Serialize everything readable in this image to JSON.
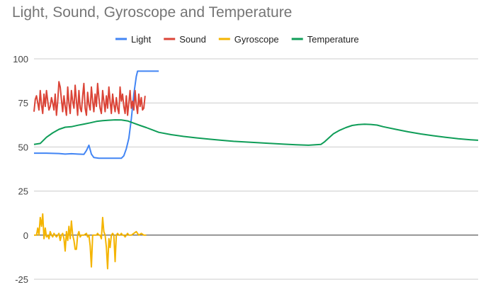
{
  "chart_data": {
    "type": "line",
    "title": "Light, Sound, Gyroscope and Temperature",
    "xlabel": "",
    "ylabel": "",
    "ylim": [
      -25,
      100
    ],
    "yticks": [
      100,
      75,
      50,
      25,
      0,
      -25
    ],
    "grid": true,
    "legend_position": "top",
    "series": [
      {
        "name": "Light",
        "color": "#4285f4",
        "points": [
          [
            0,
            46.5
          ],
          [
            10,
            46.5
          ],
          [
            20,
            46.3
          ],
          [
            25,
            46
          ],
          [
            30,
            46.2
          ],
          [
            35,
            46
          ],
          [
            40,
            45.8
          ],
          [
            42,
            48
          ],
          [
            44,
            51
          ],
          [
            46,
            46
          ],
          [
            48,
            44
          ],
          [
            52,
            43.6
          ],
          [
            60,
            43.6
          ],
          [
            70,
            43.6
          ],
          [
            72,
            45
          ],
          [
            74,
            49
          ],
          [
            76,
            55
          ],
          [
            78,
            66
          ],
          [
            80,
            80
          ],
          [
            82,
            90
          ],
          [
            83,
            93
          ],
          [
            90,
            93
          ],
          [
            100,
            93
          ]
        ]
      },
      {
        "name": "Sound",
        "color": "#db4437",
        "points": [
          [
            0,
            70
          ],
          [
            1,
            77
          ],
          [
            2,
            79
          ],
          [
            3,
            75
          ],
          [
            4,
            71
          ],
          [
            5,
            82
          ],
          [
            6,
            74
          ],
          [
            7,
            69
          ],
          [
            8,
            80
          ],
          [
            9,
            73
          ],
          [
            10,
            82
          ],
          [
            11,
            76
          ],
          [
            12,
            71
          ],
          [
            13,
            73
          ],
          [
            14,
            78
          ],
          [
            15,
            75
          ],
          [
            16,
            71
          ],
          [
            17,
            80
          ],
          [
            18,
            68
          ],
          [
            19,
            76
          ],
          [
            20,
            87
          ],
          [
            21,
            84
          ],
          [
            22,
            77
          ],
          [
            23,
            70
          ],
          [
            24,
            79
          ],
          [
            25,
            73
          ],
          [
            26,
            68
          ],
          [
            27,
            84
          ],
          [
            28,
            75
          ],
          [
            29,
            69
          ],
          [
            30,
            82
          ],
          [
            31,
            76
          ],
          [
            32,
            72
          ],
          [
            33,
            85
          ],
          [
            34,
            76
          ],
          [
            35,
            68
          ],
          [
            36,
            82
          ],
          [
            37,
            72
          ],
          [
            38,
            70
          ],
          [
            39,
            79
          ],
          [
            40,
            86
          ],
          [
            41,
            72
          ],
          [
            42,
            68
          ],
          [
            43,
            81
          ],
          [
            44,
            74
          ],
          [
            45,
            71
          ],
          [
            46,
            84
          ],
          [
            47,
            76
          ],
          [
            48,
            70
          ],
          [
            49,
            80
          ],
          [
            50,
            73
          ],
          [
            51,
            86
          ],
          [
            52,
            78
          ],
          [
            53,
            72
          ],
          [
            54,
            69
          ],
          [
            55,
            82
          ],
          [
            56,
            76
          ],
          [
            57,
            70
          ],
          [
            58,
            79
          ],
          [
            59,
            72
          ],
          [
            60,
            84
          ],
          [
            61,
            76
          ],
          [
            62,
            69
          ],
          [
            63,
            80
          ],
          [
            64,
            74
          ],
          [
            65,
            70
          ],
          [
            66,
            78
          ],
          [
            67,
            72
          ],
          [
            68,
            69
          ],
          [
            69,
            84
          ],
          [
            70,
            76
          ],
          [
            71,
            80
          ],
          [
            72,
            73
          ],
          [
            73,
            69
          ],
          [
            74,
            79
          ],
          [
            75,
            68
          ],
          [
            76,
            75
          ],
          [
            77,
            82
          ],
          [
            78,
            72
          ],
          [
            79,
            76
          ],
          [
            80,
            71
          ],
          [
            81,
            82
          ],
          [
            82,
            74
          ],
          [
            83,
            69
          ],
          [
            84,
            80
          ],
          [
            85,
            73
          ],
          [
            86,
            78
          ],
          [
            87,
            71
          ],
          [
            88,
            72
          ],
          [
            89,
            79
          ]
        ]
      },
      {
        "name": "Gyroscope",
        "color": "#f4b400",
        "points": [
          [
            0,
            0
          ],
          [
            2,
            0
          ],
          [
            3,
            4
          ],
          [
            4,
            0
          ],
          [
            5,
            10
          ],
          [
            6,
            5
          ],
          [
            7,
            12
          ],
          [
            8,
            -2
          ],
          [
            9,
            4
          ],
          [
            10,
            -1
          ],
          [
            11,
            0
          ],
          [
            12,
            -2
          ],
          [
            13,
            2
          ],
          [
            14,
            0
          ],
          [
            15,
            -1
          ],
          [
            16,
            1
          ],
          [
            17,
            0
          ],
          [
            18,
            -1
          ],
          [
            19,
            0
          ],
          [
            20,
            1
          ],
          [
            21,
            -3
          ],
          [
            22,
            0
          ],
          [
            23,
            1
          ],
          [
            24,
            -2
          ],
          [
            25,
            -9
          ],
          [
            26,
            2
          ],
          [
            27,
            -3
          ],
          [
            28,
            5
          ],
          [
            29,
            -2
          ],
          [
            30,
            8
          ],
          [
            31,
            0
          ],
          [
            32,
            -3
          ],
          [
            33,
            -8
          ],
          [
            34,
            -8
          ],
          [
            35,
            0
          ],
          [
            36,
            2
          ],
          [
            37,
            -1
          ],
          [
            38,
            0
          ],
          [
            39,
            0
          ],
          [
            40,
            0
          ],
          [
            42,
            1
          ],
          [
            43,
            -1
          ],
          [
            44,
            0
          ],
          [
            45,
            -6
          ],
          [
            46,
            -18
          ],
          [
            47,
            0
          ],
          [
            48,
            0
          ],
          [
            49,
            0
          ],
          [
            50,
            0
          ],
          [
            51,
            1
          ],
          [
            52,
            0
          ],
          [
            53,
            0
          ],
          [
            54,
            -2
          ],
          [
            55,
            10
          ],
          [
            56,
            2
          ],
          [
            57,
            0
          ],
          [
            58,
            -7
          ],
          [
            59,
            -19
          ],
          [
            60,
            -2
          ],
          [
            61,
            -7
          ],
          [
            62,
            0
          ],
          [
            63,
            1
          ],
          [
            64,
            0
          ],
          [
            65,
            -15
          ],
          [
            66,
            0
          ],
          [
            67,
            1
          ],
          [
            68,
            0
          ],
          [
            69,
            0
          ],
          [
            70,
            1
          ],
          [
            71,
            0
          ],
          [
            72,
            0
          ],
          [
            73,
            -1
          ],
          [
            74,
            0
          ],
          [
            75,
            1
          ],
          [
            76,
            0
          ],
          [
            77,
            0
          ],
          [
            78,
            0
          ],
          [
            80,
            1
          ],
          [
            82,
            2
          ],
          [
            84,
            0
          ],
          [
            86,
            1
          ],
          [
            88,
            0
          ],
          [
            90,
            0
          ]
        ]
      },
      {
        "name": "Temperature",
        "color": "#0f9d58",
        "points": [
          [
            0,
            51.5
          ],
          [
            5,
            52
          ],
          [
            10,
            55.5
          ],
          [
            15,
            58
          ],
          [
            20,
            60
          ],
          [
            25,
            61.2
          ],
          [
            30,
            61.5
          ],
          [
            35,
            62.3
          ],
          [
            40,
            63
          ],
          [
            45,
            63.7
          ],
          [
            50,
            64.5
          ],
          [
            55,
            64.9
          ],
          [
            60,
            65.2
          ],
          [
            65,
            65.4
          ],
          [
            70,
            65.3
          ],
          [
            75,
            64.8
          ],
          [
            80,
            63.5
          ],
          [
            85,
            62.2
          ],
          [
            90,
            61
          ],
          [
            95,
            59.7
          ],
          [
            100,
            58.3
          ],
          [
            110,
            57
          ],
          [
            120,
            56
          ],
          [
            130,
            55.2
          ],
          [
            140,
            54.5
          ],
          [
            150,
            53.8
          ],
          [
            160,
            53.2
          ],
          [
            170,
            52.8
          ],
          [
            180,
            52.4
          ],
          [
            190,
            52
          ],
          [
            200,
            51.6
          ],
          [
            210,
            51.3
          ],
          [
            220,
            51
          ],
          [
            230,
            51.5
          ],
          [
            233,
            53
          ],
          [
            236,
            55
          ],
          [
            240,
            57.5
          ],
          [
            245,
            59.5
          ],
          [
            250,
            61
          ],
          [
            255,
            62.2
          ],
          [
            260,
            62.7
          ],
          [
            265,
            62.9
          ],
          [
            270,
            62.8
          ],
          [
            275,
            62.4
          ],
          [
            280,
            61.5
          ],
          [
            290,
            60
          ],
          [
            300,
            58.6
          ],
          [
            310,
            57.4
          ],
          [
            320,
            56.4
          ],
          [
            330,
            55.5
          ],
          [
            340,
            54.7
          ],
          [
            350,
            54.1
          ],
          [
            356,
            53.8
          ]
        ]
      }
    ]
  }
}
